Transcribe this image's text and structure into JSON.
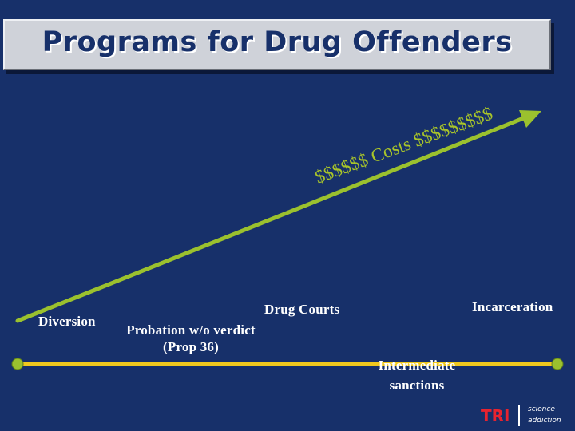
{
  "slide": {
    "title": "Programs for Drug Offenders",
    "colors": {
      "background": "#17306a",
      "title_box": "#cfd2d9",
      "title_text": "#17306a",
      "arrow": "#9bc12e",
      "timeline": "#f0c81e",
      "timeline_end": "#9bc12e",
      "costs_text": "#a8c42a",
      "logo_red": "#e8232f"
    }
  },
  "diagram": {
    "cost_arrow_label": "$$$$$$ Costs $$$$$$$$$",
    "programs": {
      "diversion": "Diversion",
      "probation_line1": "Probation w/o verdict",
      "probation_line2": "(Prop 36)",
      "drug_courts": "Drug Courts",
      "intermediate_line1": "Intermediate",
      "intermediate_line2": "sanctions",
      "incarceration": "Incarceration"
    }
  },
  "logo": {
    "abbr": "TRI",
    "line1": "science",
    "line2": "addiction"
  }
}
